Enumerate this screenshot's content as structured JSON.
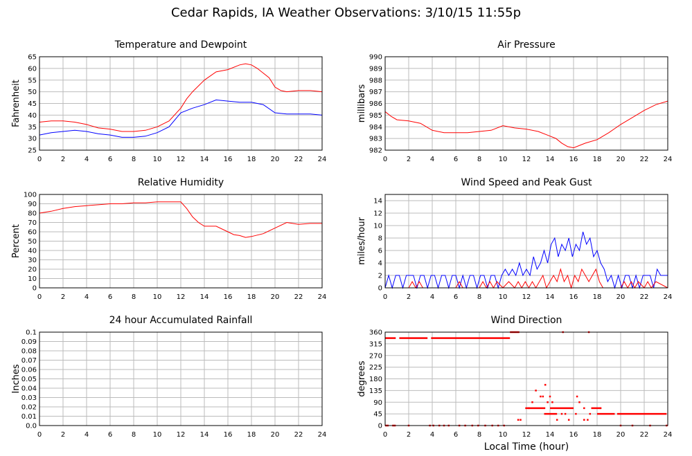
{
  "title": "Cedar Rapids, IA Weather Observations: 3/10/15 11:55p",
  "x_axis_label": "Local Time (hour)",
  "colors": {
    "red": "#ff0000",
    "blue": "#0000ff",
    "grid": "#bbbbbb",
    "frame": "#000000"
  },
  "chart_data": [
    {
      "type": "line",
      "title": "Temperature and Dewpoint",
      "ylabel": "Fahrenheit",
      "xlim": [
        0,
        24
      ],
      "ylim": [
        25,
        65
      ],
      "xticks": [
        0,
        2,
        4,
        6,
        8,
        10,
        12,
        14,
        16,
        18,
        20,
        22,
        24
      ],
      "yticks": [
        25,
        30,
        35,
        40,
        45,
        50,
        55,
        60,
        65
      ],
      "grid": true,
      "series": [
        {
          "color": "#ff0000",
          "x": [
            0,
            1,
            2,
            3,
            4,
            5,
            6,
            7,
            8,
            9,
            10,
            11,
            12,
            12.5,
            13,
            14,
            15,
            16,
            17,
            17.5,
            18,
            18.5,
            19,
            19.5,
            20,
            20.5,
            21,
            22,
            23,
            24
          ],
          "y": [
            37,
            37.5,
            37.5,
            37,
            36,
            34.5,
            34,
            33,
            33,
            33.5,
            35,
            37.5,
            43,
            47,
            50,
            55,
            58.5,
            59.5,
            61.5,
            62,
            61.5,
            60,
            58,
            56,
            52,
            50.5,
            50,
            50.5,
            50.5,
            50
          ]
        },
        {
          "color": "#0000ff",
          "x": [
            0,
            1,
            2,
            3,
            4,
            5,
            6,
            7,
            8,
            9,
            10,
            11,
            12,
            13,
            14,
            15,
            16,
            17,
            18,
            19,
            20,
            21,
            22,
            23,
            24
          ],
          "y": [
            31.5,
            32.5,
            33,
            33.5,
            33,
            32,
            31.5,
            30.5,
            30.5,
            31,
            32.5,
            35,
            41,
            43,
            44.5,
            46.5,
            46,
            45.5,
            45.5,
            44.5,
            41,
            40.5,
            40.5,
            40.5,
            40
          ]
        }
      ]
    },
    {
      "type": "line",
      "title": "Air Pressure",
      "ylabel": "millibars",
      "xlim": [
        0,
        24
      ],
      "ylim": [
        982,
        990
      ],
      "xticks": [
        0,
        2,
        4,
        6,
        8,
        10,
        12,
        14,
        16,
        18,
        20,
        22,
        24
      ],
      "yticks": [
        982,
        983,
        984,
        985,
        986,
        987,
        988,
        989,
        990
      ],
      "grid": true,
      "series": [
        {
          "color": "#ff0000",
          "x": [
            0,
            0.5,
            1,
            2,
            3,
            4,
            5,
            6,
            7,
            8,
            9,
            10,
            11,
            12,
            13,
            14,
            14.5,
            15,
            15.5,
            16,
            17,
            18,
            19,
            20,
            21,
            22,
            23,
            24
          ],
          "y": [
            985.3,
            984.9,
            984.6,
            984.5,
            984.3,
            983.7,
            983.5,
            983.5,
            983.5,
            983.6,
            983.7,
            984.1,
            983.9,
            983.8,
            983.6,
            983.2,
            983.0,
            982.6,
            982.3,
            982.2,
            982.6,
            982.9,
            983.5,
            984.2,
            984.8,
            985.4,
            985.9,
            986.2
          ]
        }
      ]
    },
    {
      "type": "line",
      "title": "Relative Humidity",
      "ylabel": "Percent",
      "xlim": [
        0,
        24
      ],
      "ylim": [
        0,
        100
      ],
      "xticks": [
        0,
        2,
        4,
        6,
        8,
        10,
        12,
        14,
        16,
        18,
        20,
        22,
        24
      ],
      "yticks": [
        0,
        10,
        20,
        30,
        40,
        50,
        60,
        70,
        80,
        90,
        100
      ],
      "grid": true,
      "series": [
        {
          "color": "#ff0000",
          "x": [
            0,
            1,
            2,
            3,
            4,
            5,
            6,
            7,
            8,
            9,
            10,
            11,
            12,
            12.5,
            13,
            13.5,
            14,
            15,
            16,
            16.5,
            17,
            17.5,
            18,
            19,
            20,
            21,
            22,
            23,
            24
          ],
          "y": [
            80,
            82,
            85,
            87,
            88,
            89,
            90,
            90,
            91,
            91,
            92,
            92,
            92,
            85,
            76,
            70,
            66,
            66,
            60,
            57,
            56,
            54,
            55,
            58,
            64,
            70,
            68,
            69,
            69
          ]
        }
      ]
    },
    {
      "type": "line",
      "title": "Wind Speed and Peak Gust",
      "ylabel": "miles/hour",
      "xlim": [
        0,
        24
      ],
      "ylim": [
        0,
        15
      ],
      "xticks": [
        0,
        2,
        4,
        6,
        8,
        10,
        12,
        14,
        16,
        18,
        20,
        22,
        24
      ],
      "yticks": [
        0,
        2,
        4,
        6,
        8,
        10,
        12,
        14
      ],
      "grid": true,
      "series": [
        {
          "color": "#0000ff",
          "x": [
            0,
            0.3,
            0.6,
            0.9,
            1.2,
            1.5,
            1.8,
            2.1,
            2.4,
            2.7,
            3.0,
            3.3,
            3.6,
            3.9,
            4.2,
            4.5,
            4.8,
            5.1,
            5.4,
            5.7,
            6.0,
            6.3,
            6.6,
            6.9,
            7.2,
            7.5,
            7.8,
            8.1,
            8.4,
            8.7,
            9.0,
            9.3,
            9.6,
            9.9,
            10.2,
            10.5,
            10.8,
            11.1,
            11.4,
            11.7,
            12.0,
            12.3,
            12.6,
            12.9,
            13.2,
            13.5,
            13.8,
            14.1,
            14.4,
            14.7,
            15.0,
            15.3,
            15.6,
            15.9,
            16.2,
            16.5,
            16.8,
            17.1,
            17.4,
            17.7,
            18.0,
            18.3,
            18.6,
            18.9,
            19.2,
            19.5,
            19.8,
            20.1,
            20.4,
            20.7,
            21.0,
            21.3,
            21.6,
            21.9,
            22.2,
            22.5,
            22.8,
            23.1,
            23.4,
            23.7,
            24.0
          ],
          "y": [
            0,
            2,
            0,
            2,
            2,
            0,
            2,
            2,
            2,
            0,
            2,
            2,
            0,
            2,
            2,
            0,
            2,
            2,
            0,
            2,
            2,
            0,
            2,
            0,
            2,
            2,
            0,
            2,
            2,
            0,
            2,
            2,
            0,
            2,
            3,
            2,
            3,
            2,
            4,
            2,
            3,
            2,
            5,
            3,
            4,
            6,
            4,
            7,
            8,
            5,
            7,
            6,
            8,
            5,
            7,
            6,
            9,
            7,
            8,
            5,
            6,
            4,
            3,
            1,
            2,
            0,
            2,
            0,
            2,
            2,
            0,
            2,
            0,
            2,
            2,
            2,
            0,
            3,
            2,
            2,
            2
          ]
        },
        {
          "color": "#ff0000",
          "x": [
            0,
            2,
            2.3,
            2.6,
            2.9,
            3.2,
            3.5,
            6,
            6.3,
            6.6,
            8,
            8.3,
            8.6,
            8.9,
            9.2,
            9.5,
            10,
            10.5,
            11,
            11.3,
            11.6,
            11.9,
            12.2,
            12.5,
            12.8,
            13.1,
            13.4,
            13.7,
            14,
            14.3,
            14.6,
            14.9,
            15.2,
            15.5,
            15.8,
            16.1,
            16.4,
            16.7,
            17,
            17.3,
            17.6,
            17.9,
            18.2,
            18.5,
            19,
            19.5,
            20,
            20.3,
            20.6,
            20.9,
            21.2,
            21.5,
            22,
            22.3,
            22.6,
            23,
            24
          ],
          "y": [
            0,
            0,
            1,
            0,
            1,
            0,
            0,
            0,
            1,
            0,
            0,
            1,
            0,
            1,
            0,
            1,
            0,
            1,
            0,
            1,
            0,
            1,
            0,
            1,
            0,
            1,
            2,
            0,
            1,
            2,
            1,
            3,
            1,
            2,
            0,
            2,
            1,
            3,
            2,
            1,
            2,
            3,
            1,
            0,
            0,
            0,
            0,
            1,
            0,
            1,
            0,
            1,
            0,
            1,
            0,
            1,
            0
          ]
        }
      ]
    },
    {
      "type": "line",
      "title": "24 hour Accumulated Rainfall",
      "ylabel": "Inches",
      "xlim": [
        0,
        24
      ],
      "ylim": [
        0,
        0.1
      ],
      "xticks": [
        0,
        2,
        4,
        6,
        8,
        10,
        12,
        14,
        16,
        18,
        20,
        22,
        24
      ],
      "yticks": [
        0.0,
        0.01,
        0.02,
        0.03,
        0.04,
        0.05,
        0.06,
        0.07,
        0.08,
        0.09,
        0.1
      ],
      "ytick_labels": [
        "0.0",
        "0.01",
        "0.02",
        "0.03",
        "0.04",
        "0.05",
        "0.06",
        "0.07",
        "0.08",
        "0.09",
        "0.1"
      ],
      "grid": true,
      "series": [
        {
          "color": "#ff0000",
          "x": [
            0,
            24
          ],
          "y": [
            0,
            0
          ]
        }
      ]
    },
    {
      "type": "scatter",
      "title": "Wind Direction",
      "ylabel": "degrees",
      "xlabel": "Local Time (hour)",
      "xlim": [
        0,
        24
      ],
      "ylim": [
        0,
        360
      ],
      "xticks": [
        0,
        2,
        4,
        6,
        8,
        10,
        12,
        14,
        16,
        18,
        20,
        22,
        24
      ],
      "yticks": [
        0,
        45,
        90,
        135,
        180,
        225,
        270,
        315,
        360
      ],
      "grid": true,
      "series": [
        {
          "color": "#ff0000",
          "segments": [
            {
              "x0": 0.0,
              "x1": 0.9,
              "y": 337
            },
            {
              "x0": 1.2,
              "x1": 3.6,
              "y": 337
            },
            {
              "x0": 3.9,
              "x1": 10.6,
              "y": 337
            },
            {
              "x0": 10.6,
              "x1": 11.4,
              "y": 360
            },
            {
              "x0": 11.9,
              "x1": 13.6,
              "y": 67
            },
            {
              "x0": 13.5,
              "x1": 14.6,
              "y": 45
            },
            {
              "x0": 14.0,
              "x1": 16.0,
              "y": 67
            },
            {
              "x0": 17.5,
              "x1": 18.3,
              "y": 67
            },
            {
              "x0": 18.0,
              "x1": 19.5,
              "y": 45
            },
            {
              "x0": 19.7,
              "x1": 23.9,
              "y": 45
            },
            {
              "x0": 0.0,
              "x1": 0.3,
              "y": 0
            },
            {
              "x0": 0.6,
              "x1": 0.9,
              "y": 0
            }
          ],
          "x": [
            2.0,
            3.8,
            4.1,
            4.6,
            5.0,
            5.4,
            6.3,
            6.8,
            7.4,
            7.9,
            8.5,
            9.1,
            9.6,
            10.1,
            11.3,
            11.5,
            12.2,
            12.5,
            12.8,
            13.2,
            13.4,
            13.6,
            13.8,
            14.0,
            14.2,
            14.6,
            15.0,
            15.3,
            15.6,
            16.2,
            16.5,
            16.9,
            17.2,
            17.4,
            18.3,
            20.0,
            21.0,
            22.5,
            23.9,
            15.1,
            17.3,
            16.3,
            16.9
          ],
          "y": [
            0,
            0,
            0,
            0,
            0,
            0,
            0,
            0,
            0,
            0,
            0,
            0,
            0,
            0,
            22,
            22,
            67,
            90,
            135,
            112,
            112,
            157,
            90,
            112,
            90,
            22,
            45,
            45,
            22,
            45,
            90,
            22,
            22,
            45,
            67,
            0,
            0,
            0,
            0,
            360,
            360,
            112,
            67
          ]
        }
      ]
    }
  ]
}
